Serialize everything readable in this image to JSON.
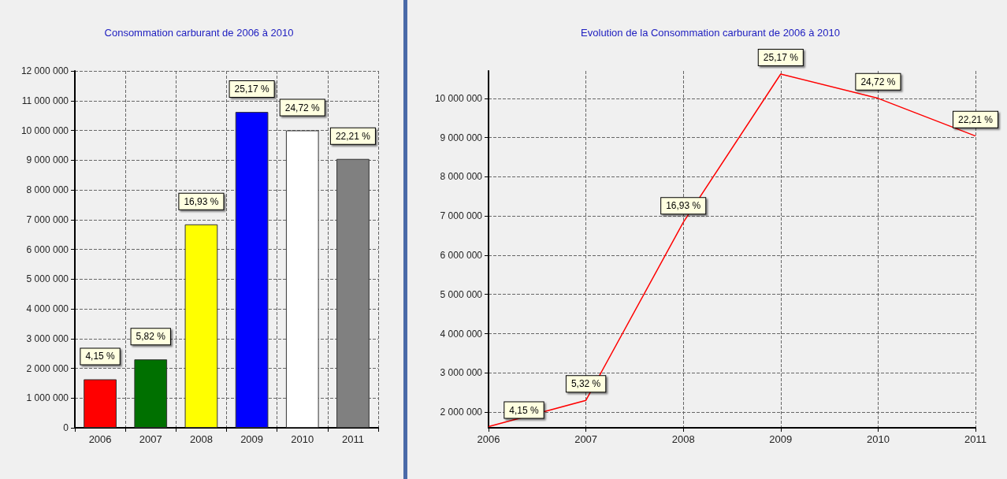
{
  "chart_data": [
    {
      "type": "bar",
      "title": "Consommation carburant de 2006 à 2010",
      "categories": [
        "2006",
        "2007",
        "2008",
        "2009",
        "2010",
        "2011"
      ],
      "values": [
        1630000,
        2300000,
        6840000,
        10620000,
        10000000,
        9040000
      ],
      "colors": [
        "#ff0000",
        "#007000",
        "#ffff00",
        "#0000ff",
        "#ffffff",
        "#808080"
      ],
      "annotations": [
        {
          "text": "4,15 %",
          "x": "2006",
          "y": 1630000
        },
        {
          "text": "5,82 %",
          "x": "2007",
          "y": 2300000
        },
        {
          "text": "16,93 %",
          "x": "2008",
          "y": 6840000
        },
        {
          "text": "25,17 %",
          "x": "2009",
          "y": 10620000
        },
        {
          "text": "24,72 %",
          "x": "2010",
          "y": 10000000
        },
        {
          "text": "22,21 %",
          "x": "2011",
          "y": 9040000
        }
      ],
      "ylim": [
        0,
        12000000
      ],
      "yticks": [
        0,
        1000000,
        2000000,
        3000000,
        4000000,
        5000000,
        6000000,
        7000000,
        8000000,
        9000000,
        10000000,
        11000000,
        12000000
      ],
      "grid": true
    },
    {
      "type": "line",
      "title": "Evolution de la Consommation carburant de 2006 à 2010",
      "categories": [
        "2006",
        "2007",
        "2008",
        "2009",
        "2010",
        "2011"
      ],
      "series": [
        {
          "color": "#ff0000",
          "values": [
            1630000,
            2300000,
            6840000,
            10620000,
            10000000,
            9040000
          ]
        }
      ],
      "annotations": [
        {
          "text": "4,15 %",
          "x": "2006",
          "y": 1630000
        },
        {
          "text": "5,32 %",
          "x": "2007",
          "y": 2300000
        },
        {
          "text": "16,93 %",
          "x": "2008",
          "y": 6840000
        },
        {
          "text": "25,17 %",
          "x": "2009",
          "y": 10620000
        },
        {
          "text": "24,72 %",
          "x": "2010",
          "y": 10000000
        },
        {
          "text": "22,21 %",
          "x": "2011",
          "y": 9040000
        }
      ],
      "ylim": [
        1600000,
        10700000
      ],
      "yticks": [
        2000000,
        3000000,
        4000000,
        5000000,
        6000000,
        7000000,
        8000000,
        9000000,
        10000000
      ],
      "grid": true,
      "marker": "none",
      "line_style": "solid"
    }
  ]
}
